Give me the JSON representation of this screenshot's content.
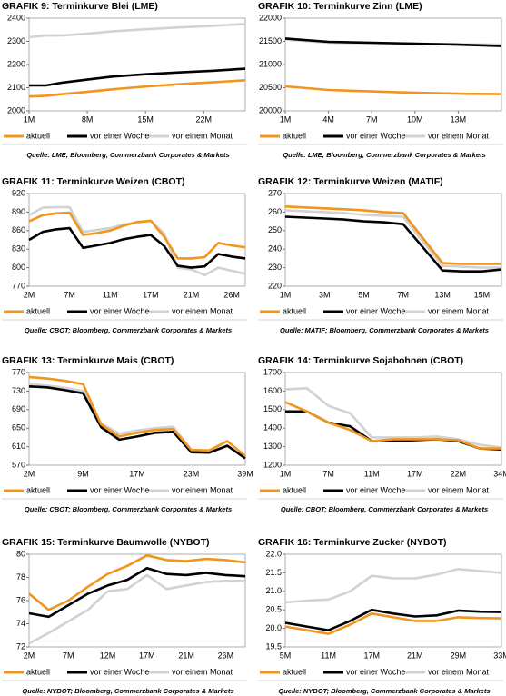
{
  "chart_data": [
    {
      "type": "line",
      "title": "GRAFIK 9: Terminkurve Blei (LME)",
      "source": "Quelle: LME; Bloomberg, Commerzbank Corporates & Markets",
      "x": [
        1,
        3,
        5,
        8,
        11,
        15,
        19,
        23,
        27
      ],
      "xlim": [
        1,
        27
      ],
      "xticks": [
        {
          "value": 1,
          "label": "1M"
        },
        {
          "value": 8,
          "label": "8M"
        },
        {
          "value": 15,
          "label": "15M"
        },
        {
          "value": 22,
          "label": "22M"
        }
      ],
      "ylim": [
        2000,
        2400
      ],
      "yticks": [
        2000,
        2100,
        2200,
        2300,
        2400
      ],
      "series": [
        {
          "name": "aktuell",
          "color": "#f0961e",
          "values": [
            2062,
            2065,
            2072,
            2082,
            2093,
            2105,
            2115,
            2123,
            2132
          ]
        },
        {
          "name": "vor einer Woche",
          "color": "#000000",
          "values": [
            2110,
            2110,
            2122,
            2135,
            2148,
            2158,
            2166,
            2173,
            2182
          ]
        },
        {
          "name": "vor einem Monat",
          "color": "#d2d2d2",
          "values": [
            2318,
            2325,
            2325,
            2333,
            2343,
            2352,
            2360,
            2367,
            2375
          ]
        }
      ]
    },
    {
      "type": "line",
      "title": "GRAFIK 10: Terminkurve Zinn (LME)",
      "source": "Quelle: LME; Bloomberg, Commerzbank Corporates & Markets",
      "x": [
        1,
        4,
        7,
        10,
        13,
        16
      ],
      "xlim": [
        1,
        16
      ],
      "xticks": [
        {
          "value": 1,
          "label": "1M"
        },
        {
          "value": 4,
          "label": "4M"
        },
        {
          "value": 7,
          "label": "7M"
        },
        {
          "value": 10,
          "label": "10M"
        },
        {
          "value": 13,
          "label": "13M"
        }
      ],
      "ylim": [
        20000,
        22000
      ],
      "yticks": [
        20000,
        20500,
        21000,
        21500,
        22000
      ],
      "series": [
        {
          "name": "aktuell",
          "color": "#f0961e",
          "values": [
            20530,
            20450,
            20420,
            20390,
            20370,
            20360
          ]
        },
        {
          "name": "vor einer Woche",
          "color": "#000000",
          "values": [
            21560,
            21490,
            21470,
            21450,
            21430,
            21400
          ]
        },
        {
          "name": "vor einem Monat",
          "color": "#d2d2d2",
          "values": [
            21540,
            21470,
            21460,
            21450,
            21440,
            21430
          ]
        }
      ]
    },
    {
      "type": "line",
      "title": "GRAFIK 11: Terminkurve Weizen (CBOT)",
      "source": "Quelle: CBOT; Bloomberg, Commerzbank Corporates & Markets",
      "categories": [
        "2M",
        null,
        null,
        "7M",
        null,
        null,
        "11M",
        null,
        null,
        "17M",
        null,
        null,
        "21M",
        null,
        null,
        "26M",
        null
      ],
      "ylim": [
        770,
        920
      ],
      "yticks": [
        770,
        800,
        830,
        860,
        890,
        920
      ],
      "series": [
        {
          "name": "aktuell",
          "color": "#f0961e",
          "values": [
            875,
            885,
            888,
            889,
            853,
            856,
            860,
            868,
            874,
            876,
            850,
            815,
            815,
            817,
            840,
            836,
            833
          ]
        },
        {
          "name": "vor einer Woche",
          "color": "#000000",
          "values": [
            845,
            858,
            862,
            864,
            832,
            836,
            840,
            846,
            850,
            853,
            835,
            803,
            800,
            802,
            822,
            818,
            815
          ]
        },
        {
          "name": "vor einem Monat",
          "color": "#d2d2d2",
          "values": [
            885,
            897,
            898,
            898,
            858,
            861,
            864,
            870,
            873,
            876,
            855,
            800,
            797,
            788,
            800,
            795,
            790
          ]
        }
      ]
    },
    {
      "type": "line",
      "title": "GRAFIK 12: Terminkurve Weizen (MATIF)",
      "source": "Quelle: MATIF; Bloomberg, Commerzbank Corporates & Markets",
      "categories": [
        "1M",
        null,
        "3M",
        null,
        "5M",
        null,
        "7M",
        null,
        "13M",
        null,
        "15M",
        null
      ],
      "ylim": [
        220,
        270
      ],
      "yticks": [
        220,
        230,
        240,
        250,
        260,
        270
      ],
      "series": [
        {
          "name": "aktuell",
          "color": "#f0961e",
          "values": [
            263,
            262.5,
            262,
            261.5,
            261,
            260,
            259.5,
            246,
            232.5,
            232,
            232,
            232
          ]
        },
        {
          "name": "vor einer Woche",
          "color": "#000000",
          "values": [
            257.5,
            257,
            256.5,
            256,
            255,
            254.5,
            253.5,
            241,
            228.5,
            228,
            228,
            229
          ]
        },
        {
          "name": "vor einem Monat",
          "color": "#d2d2d2",
          "values": [
            261,
            260.5,
            260,
            259.5,
            258.5,
            258,
            257.5,
            244,
            231,
            230.5,
            230,
            230
          ]
        }
      ]
    },
    {
      "type": "line",
      "title": "GRAFIK 13:  Terminkurve Mais (CBOT)",
      "source": "Quelle: CBOT; Bloomberg, Commerzbank Corporates & Markets",
      "categories": [
        "2M",
        null,
        null,
        "9M",
        null,
        null,
        "17M",
        null,
        null,
        "23M",
        null,
        null,
        "39M"
      ],
      "ylim": [
        570,
        770
      ],
      "yticks": [
        570,
        610,
        650,
        690,
        730,
        770
      ],
      "series": [
        {
          "name": "aktuell",
          "color": "#f0961e",
          "values": [
            760,
            757,
            752,
            745,
            658,
            632,
            640,
            646,
            648,
            603,
            602,
            622,
            590
          ]
        },
        {
          "name": "vor einer Woche",
          "color": "#000000",
          "values": [
            740,
            738,
            732,
            725,
            652,
            625,
            632,
            640,
            642,
            598,
            597,
            612,
            585
          ]
        },
        {
          "name": "vor einem Monat",
          "color": "#d2d2d2",
          "values": [
            745,
            742,
            737,
            730,
            660,
            638,
            645,
            650,
            653,
            603,
            600,
            612,
            585
          ]
        }
      ]
    },
    {
      "type": "line",
      "title": "GRAFIK 14: Terminkurve Sojabohnen (CBOT)",
      "source": "Quelle: CBOT; Bloomberg, Commerzbank Corporates & Markets",
      "categories": [
        "1M",
        null,
        "7M",
        null,
        "11M",
        null,
        "17M",
        null,
        "22M",
        null,
        "34M"
      ],
      "ylim": [
        1200,
        1700
      ],
      "yticks": [
        1200,
        1300,
        1400,
        1500,
        1600,
        1700
      ],
      "series": [
        {
          "name": "aktuell",
          "color": "#f0961e",
          "values": [
            1540,
            1490,
            1430,
            1390,
            1330,
            1340,
            1340,
            1340,
            1335,
            1290,
            1290
          ]
        },
        {
          "name": "vor einer Woche",
          "color": "#000000",
          "values": [
            1490,
            1490,
            1430,
            1410,
            1330,
            1330,
            1335,
            1340,
            1330,
            1290,
            1285
          ]
        },
        {
          "name": "vor einem Monat",
          "color": "#d2d2d2",
          "values": [
            1610,
            1615,
            1520,
            1480,
            1350,
            1350,
            1350,
            1355,
            1340,
            1310,
            1295
          ]
        }
      ]
    },
    {
      "type": "line",
      "title": "GRAFIK 15: Terminkurve Baumwolle (NYBOT)",
      "source": "Quelle: NYBOT; Bloomberg, Commerzbank Corporates & Markets",
      "categories": [
        "2M",
        null,
        "7M",
        null,
        "12M",
        null,
        "17M",
        null,
        "21M",
        null,
        "26M",
        null
      ],
      "ylim": [
        72,
        80
      ],
      "yticks": [
        72,
        74,
        76,
        78,
        80
      ],
      "series": [
        {
          "name": "aktuell",
          "color": "#f0961e",
          "values": [
            76.6,
            75.2,
            76.0,
            77.2,
            78.3,
            79.0,
            79.9,
            79.5,
            79.4,
            79.6,
            79.5,
            79.3
          ]
        },
        {
          "name": "vor einer Woche",
          "color": "#000000",
          "values": [
            74.9,
            74.6,
            75.6,
            76.6,
            77.3,
            77.8,
            78.8,
            78.3,
            78.2,
            78.4,
            78.2,
            78.1
          ]
        },
        {
          "name": "vor einem Monat",
          "color": "#d2d2d2",
          "values": [
            72.3,
            73.2,
            74.2,
            75.2,
            76.8,
            77.0,
            78.2,
            77.0,
            77.3,
            77.6,
            77.7,
            77.7
          ]
        }
      ]
    },
    {
      "type": "line",
      "title": "GRAFIK 16: Terminkurve Zucker (NYBOT)",
      "source": "Quelle: NYBOT; Bloomberg, Commerzbank Corporates & Markets",
      "categories": [
        "5M",
        null,
        "11M",
        null,
        "17M",
        null,
        "21M",
        null,
        "29M",
        null,
        "33M"
      ],
      "ylim": [
        19.5,
        22.0
      ],
      "yticks": [
        19.5,
        {
          "value": 20,
          "label": "20.0"
        },
        20.5,
        {
          "value": 21,
          "label": "21.0"
        },
        21.5,
        {
          "value": 22,
          "label": "22.0"
        }
      ],
      "series": [
        {
          "name": "aktuell",
          "color": "#f0961e",
          "values": [
            20.05,
            19.95,
            19.85,
            20.1,
            20.4,
            20.3,
            20.2,
            20.2,
            20.3,
            20.28,
            20.27
          ]
        },
        {
          "name": "vor einer Woche",
          "color": "#000000",
          "values": [
            20.15,
            20.05,
            19.95,
            20.2,
            20.5,
            20.4,
            20.32,
            20.35,
            20.48,
            20.45,
            20.44
          ]
        },
        {
          "name": "vor einem Monat",
          "color": "#d2d2d2",
          "values": [
            20.7,
            20.75,
            20.78,
            21.0,
            21.42,
            21.35,
            21.35,
            21.45,
            21.6,
            21.55,
            21.5
          ]
        }
      ]
    }
  ]
}
